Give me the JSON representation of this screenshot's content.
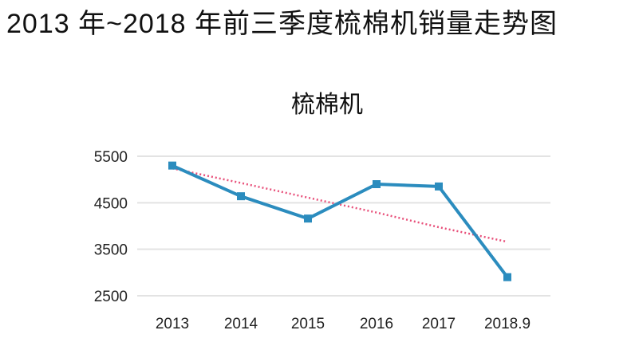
{
  "header": {
    "title": "2013 年~2018 年前三季度梳棉机销量走势图"
  },
  "chart_data": {
    "type": "line",
    "title": "梳棉机",
    "page_title": "2013 年~2018 年前三季度梳棉机销量走势图",
    "categories": [
      "2013",
      "2014",
      "2015",
      "2016",
      "2017",
      "2018.9"
    ],
    "series": [
      {
        "name": "梳棉机",
        "values": [
          5300,
          4640,
          4160,
          4900,
          4850,
          2900
        ],
        "color": "#2b8cbe",
        "style": "solid",
        "marker": "square"
      },
      {
        "name": "趋势线",
        "values": [
          5240,
          4925,
          4610,
          4290,
          3975,
          3660
        ],
        "color": "#e8507a",
        "style": "dotted",
        "marker": "none"
      }
    ],
    "xlabel": "",
    "ylabel": "",
    "yticks": [
      2500,
      3500,
      4500,
      5500
    ],
    "ylim": [
      2500,
      5500
    ],
    "grid": true,
    "legend": "none"
  },
  "colors": {
    "series_line": "#2b8cbe",
    "trend_line": "#e8507a",
    "gridline": "#e3e3e3"
  }
}
